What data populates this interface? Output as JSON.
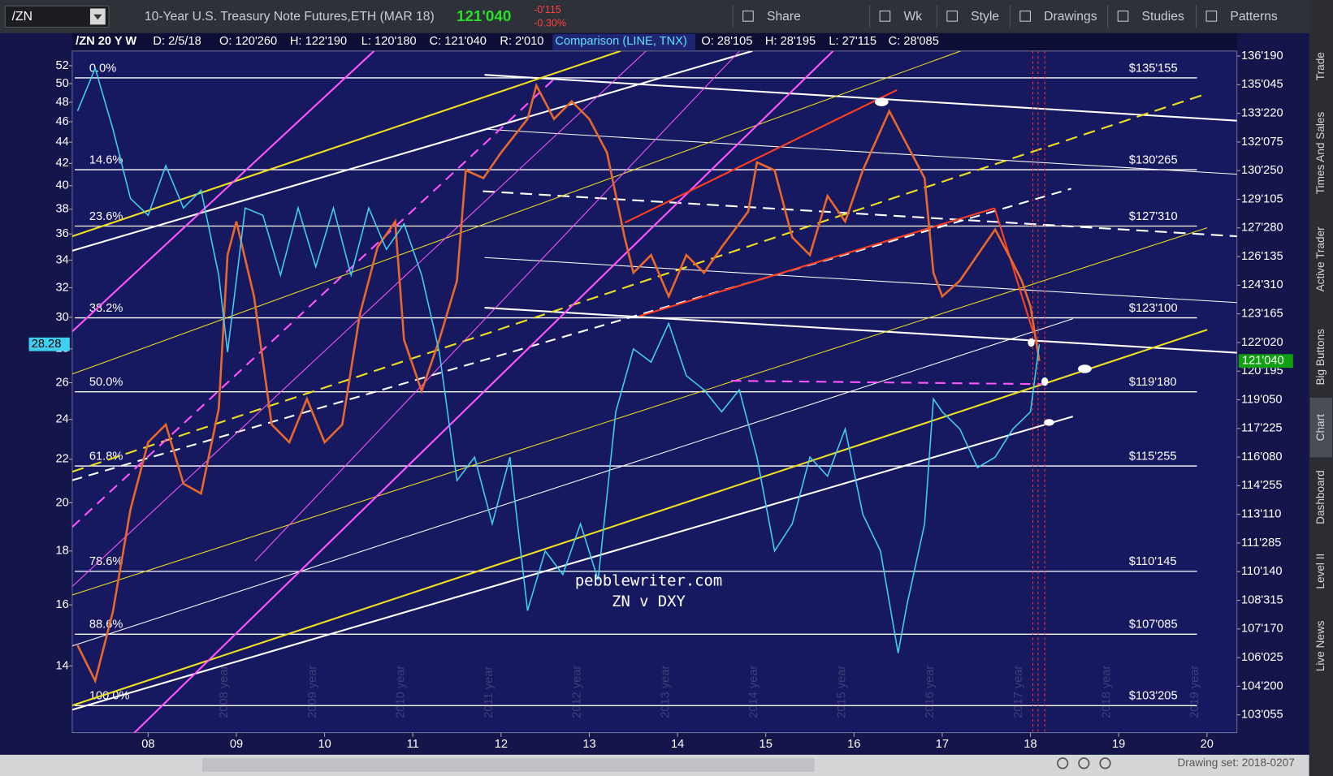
{
  "toolbar": {
    "symbol": "/ZN",
    "description": "10-Year U.S. Treasury Note Futures,ETH (MAR 18)",
    "price": "121'040",
    "change": "-0'115",
    "change_pct": "-0.30%",
    "buttons": [
      "Share",
      "Wk",
      "Style",
      "Drawings",
      "Studies",
      "Patterns"
    ]
  },
  "legend_bar": {
    "items": [
      "D: 2/5/18",
      "O: 120'260",
      "H: 122'190",
      "L: 120'180",
      "C: 121'040",
      "R: 2'010"
    ],
    "comparison_items": [
      "O: 28'105",
      "H: 28'195",
      "L: 27'115",
      "C: 28'085"
    ]
  },
  "sidebar_tabs": [
    "Trade",
    "Times And Sales",
    "Active Trader",
    "Big Buttons",
    "Chart",
    "Dashboard",
    "Level II",
    "Live News"
  ],
  "footer": {
    "drawing_set": "Drawing set: 2018-0207"
  },
  "chart_data": {
    "type": "line",
    "xlim": [
      2007.14,
      2020.34
    ],
    "xticks": [
      {
        "value": 2008,
        "label": "08"
      },
      {
        "value": 2009,
        "label": "09"
      },
      {
        "value": 2010,
        "label": "10"
      },
      {
        "value": 2011,
        "label": "11"
      },
      {
        "value": 2012,
        "label": "12"
      },
      {
        "value": 2013,
        "label": "13"
      },
      {
        "value": 2014,
        "label": "14"
      },
      {
        "value": 2015,
        "label": "15"
      },
      {
        "value": 2016,
        "label": "16"
      },
      {
        "value": 2017,
        "label": "17"
      },
      {
        "value": 2018,
        "label": "18"
      },
      {
        "value": 2019,
        "label": "19"
      },
      {
        "value": 2020,
        "label": "20"
      }
    ],
    "ylim": [
      102.27,
      136.85
    ],
    "yticks": [
      {
        "value": 136.59375,
        "label": "136'190"
      },
      {
        "value": 135.140625,
        "label": "135'045"
      },
      {
        "value": 133.6875,
        "label": "133'220"
      },
      {
        "value": 132.234375,
        "label": "132'075"
      },
      {
        "value": 130.78125,
        "label": "130'250"
      },
      {
        "value": 129.328125,
        "label": "129'105"
      },
      {
        "value": 127.875,
        "label": "127'280"
      },
      {
        "value": 126.421875,
        "label": "126'135"
      },
      {
        "value": 124.96875,
        "label": "124'310"
      },
      {
        "value": 123.515625,
        "label": "123'165"
      },
      {
        "value": 122.0625,
        "label": "122'020"
      },
      {
        "value": 120.609375,
        "label": "120'195"
      },
      {
        "value": 119.15625,
        "label": "119'050"
      },
      {
        "value": 117.703125,
        "label": "117'225"
      },
      {
        "value": 116.25,
        "label": "116'080"
      },
      {
        "value": 114.796875,
        "label": "114'255"
      },
      {
        "value": 113.34375,
        "label": "113'110"
      },
      {
        "value": 111.890625,
        "label": "111'285"
      },
      {
        "value": 110.4375,
        "label": "110'140"
      },
      {
        "value": 108.984375,
        "label": "108'315"
      },
      {
        "value": 107.53125,
        "label": "107'170"
      },
      {
        "value": 106.078125,
        "label": "106'025"
      },
      {
        "value": 104.625,
        "label": "104'200"
      },
      {
        "value": 103.171875,
        "label": "103'055"
      }
    ],
    "y2lim": [
      12.1,
      53.7
    ],
    "y2_log": true,
    "y2ticks": [
      14,
      16,
      18,
      20,
      22,
      24,
      26,
      28,
      30,
      32,
      34,
      36,
      38,
      40,
      42,
      44,
      46,
      48,
      50,
      52
    ],
    "series": [
      {
        "name": "/ZN 20 Y W",
        "color": "#e8672a",
        "x": [
          2007.2,
          2007.4,
          2007.6,
          2007.8,
          2008.0,
          2008.2,
          2008.4,
          2008.6,
          2008.8,
          2008.9,
          2009.0,
          2009.2,
          2009.4,
          2009.6,
          2009.8,
          2010.0,
          2010.2,
          2010.4,
          2010.6,
          2010.8,
          2010.9,
          2011.1,
          2011.3,
          2011.5,
          2011.6,
          2011.8,
          2012.0,
          2012.3,
          2012.4,
          2012.6,
          2012.8,
          2013.0,
          2013.2,
          2013.4,
          2013.5,
          2013.7,
          2013.9,
          2014.1,
          2014.3,
          2014.5,
          2014.8,
          2014.9,
          2015.1,
          2015.3,
          2015.5,
          2015.7,
          2015.9,
          2016.1,
          2016.4,
          2016.6,
          2016.8,
          2016.9,
          2017.0,
          2017.2,
          2017.4,
          2017.6,
          2017.8,
          2017.9,
          2018.0,
          2018.1
        ],
        "values": [
          106.7,
          104.9,
          108.4,
          113.6,
          117.0,
          117.9,
          114.9,
          114.4,
          118.7,
          126.5,
          128.2,
          124.4,
          117.9,
          117.0,
          119.2,
          117.0,
          117.9,
          123.5,
          126.9,
          128.2,
          122.2,
          119.6,
          122.2,
          125.2,
          130.8,
          130.4,
          131.7,
          133.4,
          135.1,
          133.4,
          134.3,
          133.4,
          131.7,
          127.4,
          125.6,
          126.5,
          124.4,
          126.5,
          125.6,
          126.9,
          128.7,
          131.2,
          130.8,
          127.4,
          126.5,
          129.5,
          128.2,
          130.8,
          133.8,
          132.1,
          130.4,
          125.6,
          124.4,
          125.2,
          126.5,
          127.8,
          126.1,
          125.2,
          123.9,
          121.125
        ],
        "last": {
          "value": 121.125,
          "label": "121'040"
        }
      },
      {
        "name": "Comparison (LINE, TNX)",
        "color": "#3fd0f0",
        "axis": "y2",
        "x": [
          2007.2,
          2007.4,
          2007.6,
          2007.8,
          2008.0,
          2008.2,
          2008.4,
          2008.6,
          2008.8,
          2008.9,
          2009.1,
          2009.3,
          2009.5,
          2009.7,
          2009.9,
          2010.1,
          2010.3,
          2010.5,
          2010.7,
          2010.9,
          2011.1,
          2011.3,
          2011.5,
          2011.7,
          2011.9,
          2012.1,
          2012.3,
          2012.5,
          2012.7,
          2012.9,
          2013.1,
          2013.3,
          2013.5,
          2013.7,
          2013.9,
          2014.1,
          2014.3,
          2014.5,
          2014.7,
          2014.9,
          2015.1,
          2015.3,
          2015.5,
          2015.7,
          2015.9,
          2016.1,
          2016.3,
          2016.5,
          2016.6,
          2016.8,
          2016.9,
          2017.0,
          2017.2,
          2017.4,
          2017.6,
          2017.8,
          2018.0,
          2018.1
        ],
        "values": [
          47.1,
          51.7,
          45.3,
          38.9,
          37.5,
          41.8,
          38.1,
          39.6,
          32.9,
          27.8,
          38.1,
          37.5,
          32.9,
          38.1,
          33.5,
          38.1,
          32.9,
          38.1,
          34.8,
          36.8,
          32.9,
          27.8,
          21.0,
          22.1,
          19.1,
          22.1,
          15.8,
          18.0,
          17.1,
          19.1,
          16.9,
          24.4,
          28.0,
          27.2,
          29.6,
          26.4,
          25.6,
          24.4,
          25.6,
          22.1,
          18.0,
          19.1,
          22.1,
          21.2,
          23.5,
          19.5,
          18.0,
          14.4,
          16.0,
          19.1,
          25.1,
          24.4,
          23.5,
          21.6,
          22.1,
          23.5,
          24.4,
          28.28
        ],
        "last": 28.28
      }
    ],
    "fib_levels": [
      {
        "level": "0.0%",
        "value": 135.484375,
        "label": "$135'155"
      },
      {
        "level": "14.6%",
        "value": 130.828125,
        "label": "$130'265"
      },
      {
        "level": "23.6%",
        "value": 127.96875,
        "label": "$127'310"
      },
      {
        "level": "38.2%",
        "value": 123.3125,
        "label": "$123'100"
      },
      {
        "level": "50.0%",
        "value": 119.5625,
        "label": "$119'180"
      },
      {
        "level": "61.8%",
        "value": 115.796875,
        "label": "$115'255"
      },
      {
        "level": "78.6%",
        "value": 110.453125,
        "label": "$110'145"
      },
      {
        "level": "88.6%",
        "value": 107.265625,
        "label": "$107'085"
      },
      {
        "level": "100.0%",
        "value": 103.640625,
        "label": "$103'205"
      }
    ],
    "annotations": [
      "pebblewriter.com",
      "ZN v DXY"
    ],
    "year_watermarks": [
      "2008 year",
      "2009 year",
      "2010 year",
      "2011 year",
      "2012 year",
      "2013 year",
      "2014 year",
      "2015 year",
      "2016 year",
      "2017 year",
      "2018 year",
      "2019 year"
    ]
  }
}
